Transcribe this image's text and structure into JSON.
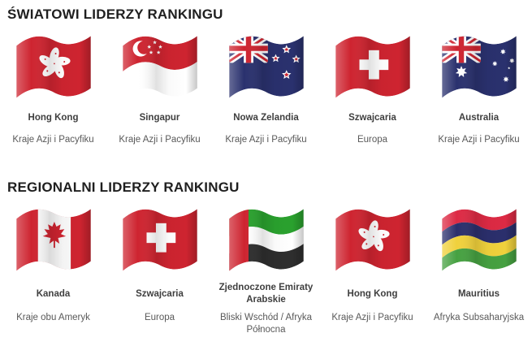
{
  "page": {
    "background": "#ffffff"
  },
  "text_colors": {
    "title": "#1f1f1f",
    "country": "#3f3f3f",
    "region": "#595959"
  },
  "flag_colors": {
    "red": "#ce2430",
    "navy": "#2a316e",
    "white": "#ffffff",
    "canada_white": "#f8f8f8",
    "uae_green": "#2aa12e",
    "uae_black": "#2e2e2e",
    "mauritius_red": "#dd2a44",
    "mauritius_blue": "#2b2f6c",
    "mauritius_yellow": "#f0d13c",
    "mauritius_green": "#46a141"
  },
  "sections": [
    {
      "title": "ŚWIATOWI LIDERZY RANKINGU",
      "cards": [
        {
          "flag": "hk",
          "icon": "flag-hong-kong-icon",
          "country": "Hong Kong",
          "region": "Kraje Azji i Pacyfiku"
        },
        {
          "flag": "sg",
          "icon": "flag-singapore-icon",
          "country": "Singapur",
          "region": "Kraje Azji i Pacyfiku"
        },
        {
          "flag": "nz",
          "icon": "flag-new-zealand-icon",
          "country": "Nowa Zelandia",
          "region": "Kraje Azji i Pacyfiku"
        },
        {
          "flag": "ch",
          "icon": "flag-switzerland-icon",
          "country": "Szwajcaria",
          "region": "Europa"
        },
        {
          "flag": "au",
          "icon": "flag-australia-icon",
          "country": "Australia",
          "region": "Kraje Azji i Pacyfiku"
        }
      ]
    },
    {
      "title": "REGIONALNI LIDERZY RANKINGU",
      "cards": [
        {
          "flag": "ca",
          "icon": "flag-canada-icon",
          "country": "Kanada",
          "region": "Kraje obu Ameryk"
        },
        {
          "flag": "ch",
          "icon": "flag-switzerland-icon",
          "country": "Szwajcaria",
          "region": "Europa"
        },
        {
          "flag": "ae",
          "icon": "flag-uae-icon",
          "country": "Zjednoczone Emiraty Arabskie",
          "region": "Bliski Wschód / Afryka Północna"
        },
        {
          "flag": "hk",
          "icon": "flag-hong-kong-icon",
          "country": "Hong Kong",
          "region": "Kraje Azji i Pacyfiku"
        },
        {
          "flag": "mu",
          "icon": "flag-mauritius-icon",
          "country": "Mauritius",
          "region": "Afryka Subsaharyjska"
        }
      ]
    }
  ]
}
